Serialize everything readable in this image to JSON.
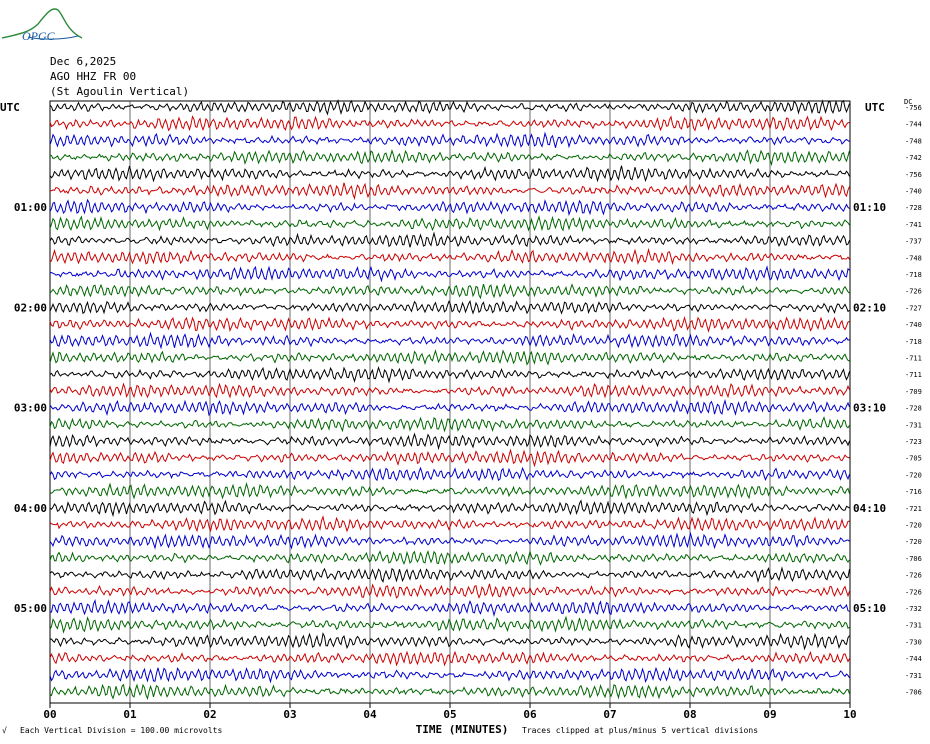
{
  "header": {
    "date": "Dec 6,2025",
    "station": "AGO HHZ FR 00",
    "location": "(St Agoulin Vertical)",
    "logo_text": "OPGC"
  },
  "colors": {
    "trace_cycle": [
      "#000000",
      "#cc0000",
      "#0000cc",
      "#006600"
    ],
    "grid": "#000000",
    "logo": "#2a8a3a"
  },
  "chart_data": {
    "type": "line",
    "title": "",
    "xlabel": "TIME (MINUTES)",
    "left_axis_label": "UTC",
    "right_axis_label": "UTC",
    "dc_label": "DC",
    "x_ticks": [
      "00",
      "01",
      "02",
      "03",
      "04",
      "05",
      "06",
      "07",
      "08",
      "09",
      "10"
    ],
    "xlim": [
      0,
      10
    ],
    "left_hour_labels": [
      {
        "row": 6,
        "label": "01:00"
      },
      {
        "row": 12,
        "label": "02:00"
      },
      {
        "row": 18,
        "label": "03:00"
      },
      {
        "row": 24,
        "label": "04:00"
      },
      {
        "row": 30,
        "label": "05:00"
      }
    ],
    "right_hour_labels": [
      {
        "row": 6,
        "label": "01:10"
      },
      {
        "row": 12,
        "label": "02:10"
      },
      {
        "row": 18,
        "label": "03:10"
      },
      {
        "row": 24,
        "label": "04:10"
      },
      {
        "row": 30,
        "label": "05:10"
      }
    ],
    "trace_offsets": [
      -756,
      -744,
      -748,
      -742,
      -756,
      -740,
      -728,
      -741,
      -737,
      -748,
      -718,
      -726,
      -727,
      -740,
      -718,
      -711,
      -711,
      -709,
      -728,
      -731,
      -723,
      -705,
      -720,
      -716,
      -721,
      -720,
      -720,
      -706,
      -726,
      -726,
      -732,
      -731,
      -730,
      -744,
      -731,
      -706
    ],
    "series_count": 36,
    "vertical_division": "Each Vertical Division = 100.00 microvolts",
    "clip_note": "Traces clipped at plus/minus 5 vertical divisions"
  }
}
